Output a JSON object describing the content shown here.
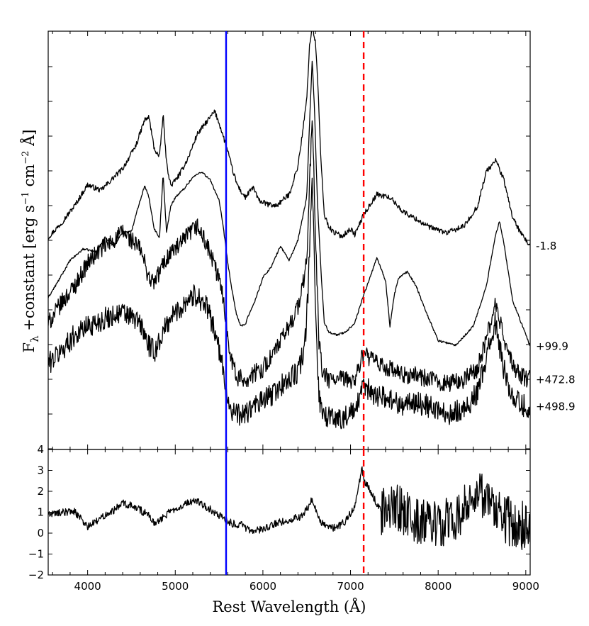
{
  "chart_data": [
    {
      "panel": "top",
      "type": "line",
      "xlabel": "Rest Wavelength (Å)",
      "ylabel": "F_λ +constant [erg s⁻¹ cm⁻² Å]",
      "ylabel_main": "F",
      "ylabel_sub": "λ",
      "ylabel_rest": " +constant [erg s",
      "ylabel_exp1": "−1",
      "ylabel_mid": " cm",
      "ylabel_exp2": "−2",
      "ylabel_end": " Å]",
      "xlim": [
        3550,
        9050
      ],
      "x_ticks": [
        "4000",
        "5000",
        "6000",
        "7000",
        "8000",
        "9000"
      ],
      "y_tick_labels": "none",
      "vertical_lines": [
        {
          "x": 5580,
          "color": "#0000ff",
          "style": "solid"
        },
        {
          "x": 7150,
          "color": "#ff0000",
          "style": "dashed"
        }
      ],
      "series": [
        {
          "name": "-1.8",
          "offset": 3.0,
          "noise": 0.045,
          "x": [
            3550,
            3700,
            3850,
            4000,
            4150,
            4300,
            4400,
            4550,
            4650,
            4700,
            4760,
            4820,
            4861,
            4900,
            4950,
            5050,
            5150,
            5250,
            5350,
            5450,
            5500,
            5550,
            5600,
            5650,
            5700,
            5750,
            5800,
            5890,
            5950,
            6050,
            6150,
            6300,
            6400,
            6450,
            6500,
            6530,
            6563,
            6600,
            6630,
            6660,
            6700,
            6750,
            6800,
            6900,
            7000,
            7050,
            7150,
            7300,
            7450,
            7600,
            7750,
            7900,
            8100,
            8300,
            8450,
            8550,
            8660,
            8750,
            8850,
            8950,
            9050
          ],
          "y": [
            3.2,
            3.45,
            3.75,
            4.12,
            4.02,
            4.25,
            4.4,
            4.8,
            5.25,
            5.3,
            4.75,
            4.6,
            5.35,
            4.5,
            4.1,
            4.3,
            4.6,
            5.0,
            5.2,
            5.4,
            5.2,
            4.95,
            4.7,
            4.4,
            4.15,
            4.0,
            3.9,
            4.08,
            3.85,
            3.78,
            3.75,
            3.95,
            4.45,
            5.0,
            5.6,
            6.5,
            6.9,
            6.6,
            5.8,
            4.6,
            3.6,
            3.4,
            3.3,
            3.22,
            3.35,
            3.25,
            3.6,
            3.95,
            3.9,
            3.65,
            3.52,
            3.38,
            3.28,
            3.4,
            3.75,
            4.35,
            4.55,
            4.2,
            3.55,
            3.25,
            3.05
          ]
        },
        {
          "name": "+99.9",
          "offset": 2.0,
          "noise": 0.018,
          "x": [
            3550,
            3650,
            3800,
            3950,
            4100,
            4200,
            4300,
            4400,
            4500,
            4550,
            4650,
            4700,
            4760,
            4820,
            4861,
            4900,
            4950,
            5000,
            5100,
            5200,
            5300,
            5400,
            5500,
            5550,
            5600,
            5650,
            5700,
            5750,
            5800,
            5850,
            5900,
            6000,
            6100,
            6200,
            6300,
            6400,
            6500,
            6540,
            6563,
            6590,
            6620,
            6660,
            6700,
            6750,
            6850,
            6950,
            7050,
            7150,
            7200,
            7300,
            7400,
            7450,
            7500,
            7550,
            7650,
            7750,
            7850,
            8000,
            8200,
            8400,
            8550,
            8650,
            8700,
            8750,
            8850,
            9050
          ],
          "y": [
            2.15,
            2.4,
            2.8,
            3.0,
            2.95,
            3.2,
            3.05,
            3.3,
            3.3,
            3.6,
            4.1,
            3.9,
            3.35,
            3.2,
            4.3,
            3.3,
            3.75,
            3.9,
            4.05,
            4.25,
            4.35,
            4.2,
            3.85,
            3.35,
            2.75,
            2.25,
            1.85,
            1.65,
            1.68,
            1.9,
            2.05,
            2.5,
            2.7,
            3.05,
            2.8,
            3.15,
            3.9,
            5.5,
            6.3,
            5.4,
            3.9,
            2.7,
            1.72,
            1.55,
            1.5,
            1.55,
            1.72,
            2.2,
            2.4,
            2.85,
            2.45,
            1.65,
            2.2,
            2.5,
            2.6,
            2.35,
            1.95,
            1.4,
            1.32,
            1.65,
            2.35,
            3.2,
            3.5,
            3.1,
            2.1,
            1.3
          ]
        },
        {
          "name": "+472.8",
          "offset": 0.72,
          "noise": 0.16,
          "x": [
            3550,
            3700,
            3850,
            4000,
            4150,
            4300,
            4400,
            4500,
            4600,
            4700,
            4760,
            4850,
            4950,
            5050,
            5150,
            5250,
            5350,
            5450,
            5500,
            5550,
            5600,
            5650,
            5700,
            5800,
            5900,
            6000,
            6100,
            6200,
            6300,
            6400,
            6450,
            6500,
            6530,
            6563,
            6600,
            6640,
            6680,
            6750,
            6900,
            7050,
            7150,
            7300,
            7450,
            7600,
            7750,
            7900,
            8100,
            8300,
            8450,
            8550,
            8650,
            8750,
            8850,
            8950,
            9050
          ],
          "y": [
            1.7,
            2.05,
            2.35,
            2.75,
            3.0,
            3.15,
            3.3,
            3.15,
            3.0,
            2.5,
            2.4,
            2.7,
            2.95,
            3.05,
            3.25,
            3.4,
            3.1,
            2.7,
            2.45,
            2.15,
            1.45,
            1.05,
            0.75,
            0.72,
            0.82,
            0.92,
            1.12,
            1.38,
            1.65,
            2.0,
            2.3,
            2.8,
            4.0,
            5.4,
            3.2,
            1.4,
            0.82,
            0.72,
            0.72,
            0.72,
            1.18,
            1.0,
            0.9,
            0.78,
            0.8,
            0.72,
            0.65,
            0.72,
            0.92,
            1.42,
            2.05,
            1.45,
            0.95,
            0.78,
            0.72
          ]
        },
        {
          "name": "+498.9",
          "offset": 0.0,
          "noise": 0.2,
          "x": [
            3550,
            3700,
            3850,
            4000,
            4150,
            4300,
            4400,
            4500,
            4600,
            4700,
            4760,
            4850,
            4950,
            5050,
            5150,
            5250,
            5350,
            5450,
            5550,
            5600,
            5650,
            5700,
            5800,
            5900,
            6000,
            6100,
            6200,
            6300,
            6400,
            6480,
            6520,
            6563,
            6600,
            6640,
            6700,
            6800,
            6900,
            7050,
            7150,
            7300,
            7450,
            7600,
            7750,
            7900,
            8100,
            8300,
            8450,
            8550,
            8650,
            8750,
            8850,
            8950,
            9050
          ],
          "y": [
            1.0,
            1.22,
            1.5,
            1.65,
            1.75,
            1.85,
            1.88,
            1.8,
            1.7,
            1.3,
            1.2,
            1.5,
            1.82,
            1.95,
            2.15,
            2.2,
            2.0,
            1.6,
            0.85,
            0.35,
            0.18,
            0.1,
            0.12,
            0.25,
            0.35,
            0.45,
            0.6,
            0.72,
            0.85,
            1.3,
            2.4,
            4.3,
            2.0,
            0.4,
            0.1,
            0.05,
            0.05,
            0.15,
            0.6,
            0.45,
            0.38,
            0.28,
            0.32,
            0.25,
            0.12,
            0.2,
            0.5,
            1.1,
            1.7,
            0.9,
            0.42,
            0.28,
            0.25
          ]
        }
      ]
    },
    {
      "panel": "bottom",
      "type": "line",
      "xlabel": "Rest Wavelength (Å)",
      "xlim": [
        3550,
        9050
      ],
      "ylim": [
        -2,
        4
      ],
      "x_ticks": [
        "4000",
        "5000",
        "6000",
        "7000",
        "8000",
        "9000"
      ],
      "y_ticks": [
        "4",
        "3",
        "2",
        "1",
        "0",
        "−1",
        "−2"
      ],
      "vertical_lines": [
        {
          "x": 5580,
          "color": "#0000ff",
          "style": "solid"
        },
        {
          "x": 7150,
          "color": "#ff0000",
          "style": "dashed"
        }
      ],
      "series": [
        {
          "name": "",
          "noise_low": 0.18,
          "noise_high": 1.2,
          "noise_switch_x": 7350,
          "x": [
            3550,
            3700,
            3850,
            4000,
            4100,
            4200,
            4300,
            4400,
            4500,
            4600,
            4700,
            4750,
            4850,
            4950,
            5050,
            5150,
            5250,
            5350,
            5450,
            5550,
            5650,
            5750,
            5850,
            5950,
            6050,
            6150,
            6250,
            6350,
            6450,
            6520,
            6560,
            6600,
            6650,
            6750,
            6850,
            6950,
            7050,
            7130,
            7160,
            7250,
            7350,
            7450,
            7550,
            7650,
            7750,
            7900,
            8000,
            8100,
            8200,
            8300,
            8400,
            8500,
            8600,
            8700,
            8800,
            8900,
            9050
          ],
          "y": [
            0.9,
            1.0,
            1.05,
            0.3,
            0.55,
            0.9,
            1.1,
            1.45,
            1.3,
            1.1,
            0.85,
            0.5,
            0.7,
            1.05,
            1.3,
            1.45,
            1.55,
            1.25,
            1.0,
            0.7,
            0.45,
            0.4,
            0.1,
            0.15,
            0.3,
            0.45,
            0.6,
            0.7,
            0.8,
            1.3,
            1.65,
            1.2,
            0.6,
            0.2,
            0.3,
            0.6,
            1.3,
            3.1,
            2.5,
            1.8,
            1.0,
            1.3,
            1.2,
            0.8,
            0.6,
            0.5,
            0.3,
            0.5,
            0.8,
            1.1,
            1.5,
            1.7,
            1.3,
            1.0,
            0.6,
            0.4,
            0.3
          ]
        }
      ]
    }
  ]
}
